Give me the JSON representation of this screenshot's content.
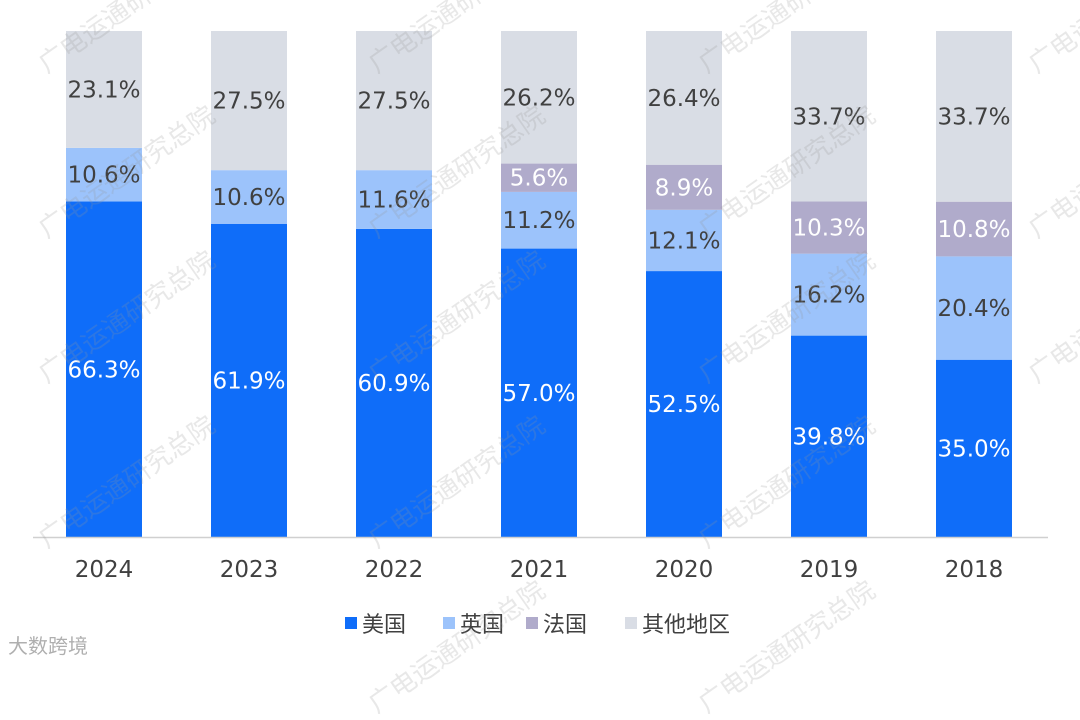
{
  "watermark": "广电运通研究总院",
  "source_mark": "大数跨境",
  "chart_data": {
    "type": "bar",
    "stacked": true,
    "percent_stacked": true,
    "categories": [
      "2024",
      "2023",
      "2022",
      "2021",
      "2020",
      "2019",
      "2018"
    ],
    "ylim": [
      0,
      100
    ],
    "series": [
      {
        "name": "美国",
        "color": "#0F6DF9",
        "label_color": "#ffffff",
        "values": [
          66.3,
          61.9,
          60.9,
          57.0,
          52.5,
          39.8,
          35.0
        ],
        "labels": [
          "66.3%",
          "61.9%",
          "60.9%",
          "57.0%",
          "52.5%",
          "39.8%",
          "35.0%"
        ]
      },
      {
        "name": "英国",
        "color": "#9CC3FB",
        "label_color": "#404040",
        "values": [
          10.6,
          10.6,
          11.6,
          11.2,
          12.1,
          16.2,
          20.4
        ],
        "labels": [
          "10.6%",
          "10.6%",
          "11.6%",
          "11.2%",
          "12.1%",
          "16.2%",
          "20.4%"
        ]
      },
      {
        "name": "法国",
        "color": "#B0ABCB",
        "label_color": "#ffffff",
        "values": [
          null,
          null,
          null,
          5.6,
          8.9,
          10.3,
          10.8
        ],
        "labels": [
          null,
          null,
          null,
          "5.6%",
          "8.9%",
          "10.3%",
          "10.8%"
        ]
      },
      {
        "name": "其他地区",
        "color": "#D9DDE5",
        "label_color": "#404040",
        "values": [
          23.1,
          27.5,
          27.5,
          26.2,
          26.4,
          33.7,
          33.7
        ],
        "labels": [
          "23.1%",
          "27.5%",
          "27.5%",
          "26.2%",
          "26.4%",
          "33.7%",
          "33.7%"
        ]
      }
    ],
    "legend": "bottom",
    "grid": false
  }
}
